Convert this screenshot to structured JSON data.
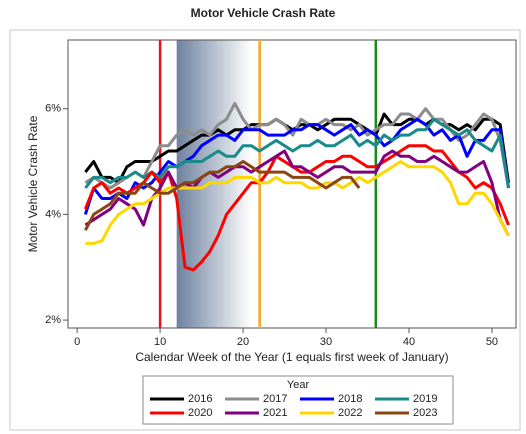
{
  "chart_data": {
    "type": "line",
    "title": "Motor Vehicle Crash Rate",
    "x_label": "Calendar Week of the Year (1 equals first week of January)",
    "y_label": "Motor Vehicle Crash Rate",
    "x": [
      1,
      2,
      3,
      4,
      5,
      6,
      7,
      8,
      9,
      10,
      11,
      12,
      13,
      14,
      15,
      16,
      17,
      18,
      19,
      20,
      21,
      22,
      23,
      24,
      25,
      26,
      27,
      28,
      29,
      30,
      31,
      32,
      33,
      34,
      35,
      36,
      37,
      38,
      39,
      40,
      41,
      42,
      43,
      44,
      45,
      46,
      47,
      48,
      49,
      50,
      51,
      52
    ],
    "xlim": [
      -1.1,
      52.9
    ],
    "xticks": [
      0,
      10,
      20,
      30,
      40,
      50
    ],
    "ylim": [
      1.85,
      7.3
    ],
    "yticks": [
      {
        "value": 2,
        "label": "2%"
      },
      {
        "value": 4,
        "label": "4%"
      },
      {
        "value": 6,
        "label": "6%"
      }
    ],
    "reference_lines": [
      {
        "x": 10,
        "color": "#e8141c"
      },
      {
        "x": 22,
        "color": "#f5a623"
      },
      {
        "x": 36,
        "color": "#1a8a1a"
      }
    ],
    "shaded_region": [
      12,
      21
    ],
    "legend_title": "Year",
    "legend_position": "bottom",
    "series": [
      {
        "name": "2016",
        "color": "#000000",
        "values": [
          4.8,
          5.0,
          4.7,
          4.7,
          4.6,
          4.9,
          5.0,
          5.0,
          5.0,
          5.1,
          5.2,
          5.2,
          5.3,
          5.4,
          5.5,
          5.5,
          5.6,
          5.5,
          5.6,
          5.6,
          5.7,
          5.7,
          5.7,
          5.8,
          5.7,
          5.6,
          5.7,
          5.7,
          5.6,
          5.7,
          5.8,
          5.8,
          5.8,
          5.7,
          5.6,
          5.5,
          5.9,
          5.7,
          5.7,
          5.8,
          5.8,
          5.7,
          5.8,
          5.7,
          5.7,
          5.6,
          5.7,
          5.6,
          5.8,
          5.8,
          5.7,
          4.6
        ]
      },
      {
        "name": "2017",
        "color": "#8c8c8c",
        "values": [
          4.6,
          4.7,
          4.6,
          4.5,
          4.6,
          4.7,
          4.8,
          4.7,
          5.0,
          5.3,
          5.3,
          5.5,
          5.6,
          5.5,
          5.6,
          5.5,
          5.7,
          5.8,
          6.1,
          5.8,
          5.6,
          5.7,
          5.7,
          5.8,
          5.7,
          5.5,
          5.8,
          5.7,
          5.7,
          5.8,
          5.7,
          5.7,
          5.6,
          5.7,
          5.5,
          5.6,
          5.7,
          5.7,
          5.9,
          5.9,
          5.8,
          6.0,
          5.8,
          5.8,
          5.6,
          5.4,
          5.5,
          5.7,
          5.9,
          5.8,
          5.4,
          4.5
        ]
      },
      {
        "name": "2018",
        "color": "#0000ff",
        "values": [
          4.0,
          4.5,
          4.3,
          4.3,
          4.4,
          4.3,
          4.6,
          4.5,
          4.6,
          4.8,
          5.0,
          4.9,
          5.0,
          5.1,
          5.3,
          5.4,
          5.5,
          5.5,
          5.4,
          5.6,
          5.6,
          5.6,
          5.5,
          5.5,
          5.5,
          5.6,
          5.6,
          5.7,
          5.7,
          5.6,
          5.5,
          5.6,
          5.7,
          5.5,
          5.6,
          5.5,
          5.3,
          5.4,
          5.6,
          5.7,
          5.8,
          5.7,
          5.5,
          5.6,
          5.4,
          5.5,
          5.1,
          5.4,
          5.4,
          5.6,
          5.6,
          4.5
        ]
      },
      {
        "name": "2019",
        "color": "#1a8a8a",
        "values": [
          4.5,
          4.7,
          4.7,
          4.6,
          4.7,
          4.7,
          4.8,
          4.7,
          4.8,
          4.7,
          4.9,
          4.9,
          5.0,
          5.0,
          5.0,
          5.1,
          5.2,
          5.1,
          5.1,
          5.3,
          5.3,
          5.2,
          5.3,
          5.4,
          5.3,
          5.2,
          5.3,
          5.3,
          5.4,
          5.3,
          5.3,
          5.4,
          5.5,
          5.3,
          5.4,
          5.3,
          5.5,
          5.4,
          5.5,
          5.5,
          5.6,
          5.6,
          5.8,
          5.7,
          5.6,
          5.5,
          5.6,
          5.4,
          5.3,
          5.2,
          5.5,
          4.5
        ]
      },
      {
        "name": "2020",
        "color": "#ff0000",
        "values": [
          4.1,
          4.5,
          4.6,
          4.4,
          4.5,
          4.4,
          4.5,
          4.6,
          4.8,
          4.6,
          4.8,
          4.3,
          3.0,
          2.95,
          3.1,
          3.3,
          3.6,
          4.0,
          4.2,
          4.4,
          4.6,
          4.6,
          4.8,
          5.1,
          5.0,
          4.9,
          4.8,
          4.8,
          4.9,
          5.0,
          5.0,
          5.1,
          5.1,
          5.0,
          4.9,
          4.9,
          5.0,
          5.1,
          5.2,
          5.3,
          5.3,
          5.3,
          5.2,
          5.2,
          5.0,
          4.8,
          4.7,
          4.5,
          4.6,
          4.5,
          4.2,
          3.8
        ]
      },
      {
        "name": "2021",
        "color": "#800080",
        "values": [
          3.8,
          3.9,
          4.0,
          4.1,
          4.3,
          4.2,
          4.1,
          3.8,
          4.3,
          4.5,
          4.8,
          4.5,
          4.6,
          4.5,
          4.7,
          4.8,
          4.7,
          4.8,
          4.9,
          4.9,
          4.8,
          4.9,
          5.0,
          5.1,
          5.2,
          4.9,
          4.9,
          4.8,
          4.7,
          4.8,
          4.9,
          4.9,
          4.8,
          4.8,
          4.8,
          4.8,
          5.1,
          5.2,
          5.1,
          5.1,
          5.0,
          5.0,
          5.1,
          5.0,
          4.9,
          4.8,
          4.8,
          4.9,
          5.0,
          4.6,
          3.9,
          3.6
        ]
      },
      {
        "name": "2022",
        "color": "#ffd700",
        "values": [
          3.45,
          3.45,
          3.5,
          3.8,
          4.0,
          4.1,
          4.2,
          4.2,
          4.3,
          4.4,
          4.5,
          4.5,
          4.5,
          4.5,
          4.5,
          4.6,
          4.6,
          4.6,
          4.7,
          4.7,
          4.7,
          4.6,
          4.6,
          4.7,
          4.6,
          4.6,
          4.6,
          4.5,
          4.5,
          4.6,
          4.6,
          4.5,
          4.6,
          4.7,
          4.6,
          4.7,
          4.8,
          4.9,
          5.0,
          4.9,
          4.9,
          4.9,
          4.9,
          4.8,
          4.6,
          4.2,
          4.2,
          4.4,
          4.4,
          4.2,
          3.9,
          3.6
        ]
      },
      {
        "name": "2023",
        "color": "#8b4513",
        "values": [
          3.7,
          4.0,
          4.1,
          4.2,
          4.4,
          4.4,
          4.4,
          4.6,
          4.5,
          4.4,
          4.4,
          4.5,
          4.6,
          4.6,
          4.7,
          4.8,
          4.8,
          4.9,
          4.9,
          5.0,
          4.9,
          4.8,
          4.8,
          4.8,
          4.8,
          4.7,
          4.7,
          4.7,
          4.6,
          4.5,
          4.6,
          4.7,
          4.7,
          4.5,
          null,
          null,
          null,
          null,
          null,
          null,
          null,
          null,
          null,
          null,
          null,
          null,
          null,
          null,
          null,
          null,
          null,
          null
        ]
      }
    ]
  }
}
